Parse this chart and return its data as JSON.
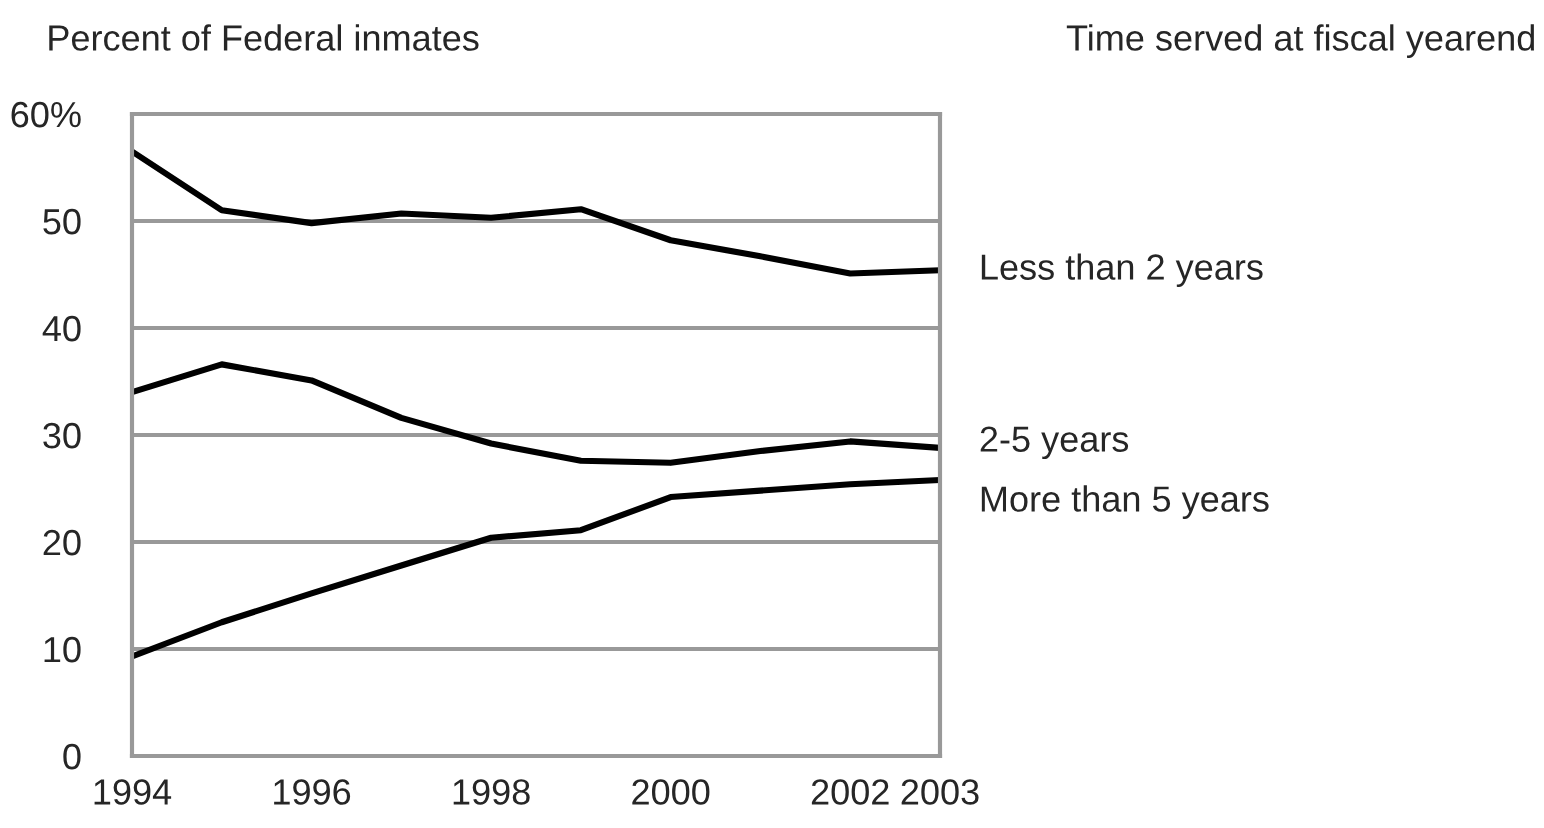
{
  "chart_data": {
    "type": "line",
    "title": "Time served at fiscal yearend",
    "ylabel": "Percent of Federal inmates",
    "x": [
      1994,
      1995,
      1996,
      1997,
      1998,
      1999,
      2000,
      2001,
      2002,
      2003
    ],
    "series": [
      {
        "name": "Less than 2 years",
        "color": "#000000",
        "values": [
          56.5,
          51,
          49.8,
          50.7,
          50.3,
          51.1,
          48.2,
          46.7,
          45.1,
          45.4
        ]
      },
      {
        "name": "2-5 years",
        "color": "#000000",
        "values": [
          34,
          36.6,
          35.1,
          31.6,
          29.2,
          27.6,
          27.4,
          28.5,
          29.4,
          28.8
        ]
      },
      {
        "name": "More than 5 years",
        "color": "#000000",
        "values": [
          9.3,
          12.5,
          15.2,
          17.8,
          20.4,
          21.1,
          24.2,
          24.8,
          25.4,
          25.8
        ]
      }
    ],
    "xlim": [
      1994,
      2003
    ],
    "xticks": [
      1994,
      1996,
      1998,
      2000,
      2002,
      2003
    ],
    "ylim": [
      0,
      60
    ],
    "yticks": [
      0,
      10,
      20,
      30,
      40,
      {
        "value": 60,
        "label": "60%"
      },
      50
    ],
    "grid": "y",
    "legend": false,
    "line_style": "solid",
    "marker": "none"
  }
}
